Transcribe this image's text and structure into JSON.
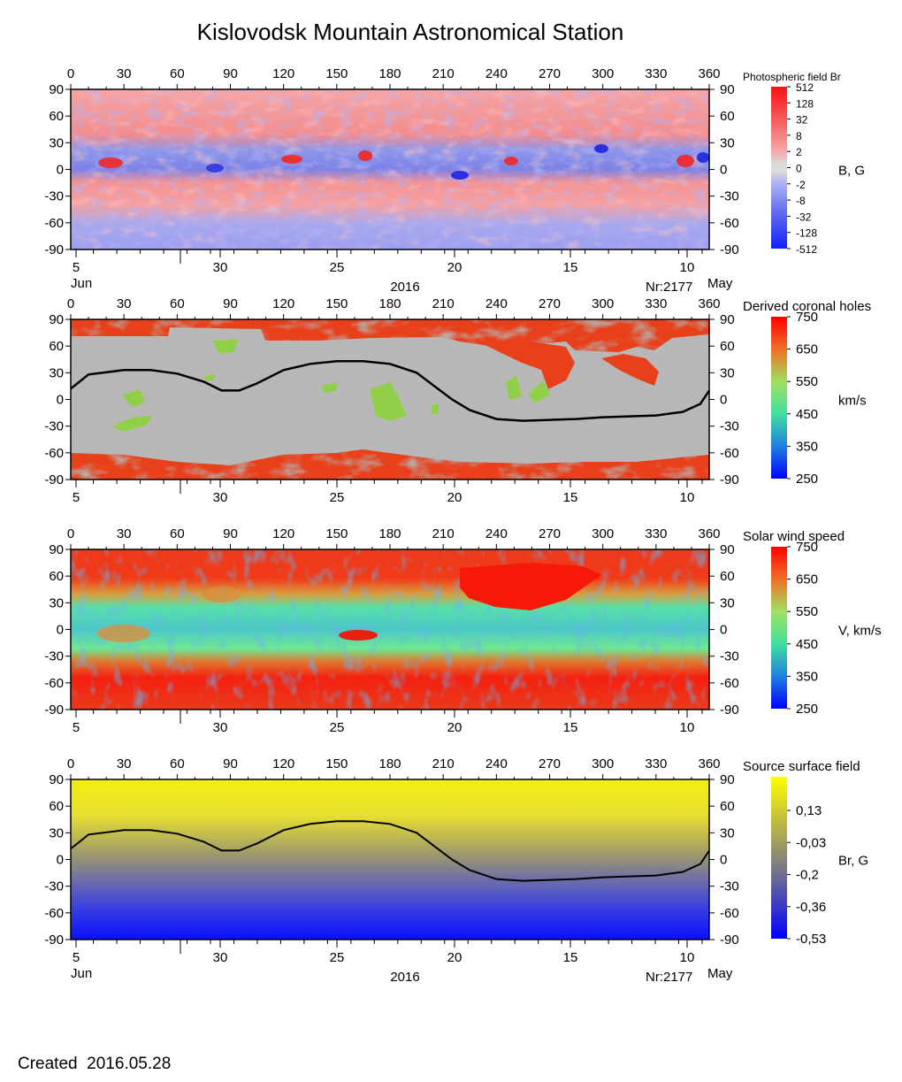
{
  "title": "Kislovodsk Mountain Astronomical Station",
  "created_label": "Created",
  "created_date": "2016.05.28",
  "chart_data": [
    {
      "type": "heatmap",
      "id": "photospheric",
      "cbar_title": "Photospheric field Br",
      "cbar_unit": "B, G",
      "cbar_ticks": [
        "512",
        "128",
        "32",
        "8",
        "2",
        "0",
        "-2",
        "-8",
        "-32",
        "-128",
        "-512"
      ],
      "colors": {
        "max": "#ff1010",
        "min": "#1020ff",
        "mid": "#dcdcdc"
      },
      "lon_ticks": [
        "0",
        "30",
        "60",
        "90",
        "120",
        "150",
        "180",
        "210",
        "240",
        "270",
        "300",
        "330",
        "360"
      ],
      "lat_ticks": [
        "90",
        "60",
        "30",
        "0",
        "-30",
        "-60",
        "-90"
      ],
      "xlim": [
        0,
        360
      ],
      "ylim": [
        -90,
        90
      ],
      "date_ticks": [
        "5",
        "30",
        "25",
        "20",
        "15",
        "10"
      ],
      "month_left": "Jun",
      "month_right": "May",
      "year": "2016",
      "rotation": "Nr:2177"
    },
    {
      "type": "heatmap",
      "id": "coronal_holes",
      "cbar_title": "Derived coronal holes",
      "cbar_unit": "km/s",
      "cbar_ticks": [
        "750",
        "650",
        "550",
        "450",
        "350",
        "250"
      ],
      "lon_ticks": [
        "0",
        "30",
        "60",
        "90",
        "120",
        "150",
        "180",
        "210",
        "240",
        "270",
        "300",
        "330",
        "360"
      ],
      "lat_ticks": [
        "90",
        "60",
        "30",
        "0",
        "-30",
        "-60",
        "-90"
      ],
      "xlim": [
        0,
        360
      ],
      "ylim": [
        -90,
        90
      ],
      "date_ticks": [
        "5",
        "30",
        "25",
        "20",
        "15",
        "10"
      ],
      "neutral_line": true
    },
    {
      "type": "heatmap",
      "id": "wind_speed",
      "cbar_title": "Solar wind speed",
      "cbar_unit": "V, km/s",
      "cbar_ticks": [
        "750",
        "650",
        "550",
        "450",
        "350",
        "250"
      ],
      "lon_ticks": [
        "0",
        "30",
        "60",
        "90",
        "120",
        "150",
        "180",
        "210",
        "240",
        "270",
        "300",
        "330",
        "360"
      ],
      "lat_ticks": [
        "90",
        "60",
        "30",
        "0",
        "-30",
        "-60",
        "-90"
      ],
      "xlim": [
        0,
        360
      ],
      "ylim": [
        -90,
        90
      ],
      "date_ticks": [
        "5",
        "30",
        "25",
        "20",
        "15",
        "10"
      ]
    },
    {
      "type": "heatmap",
      "id": "source_surface",
      "cbar_title": "Source surface field",
      "cbar_unit": "Br, G",
      "cbar_ticks": [
        "0,13",
        "-0,03",
        "-0,2",
        "-0,36",
        "-0,53"
      ],
      "lon_ticks": [
        "0",
        "30",
        "60",
        "90",
        "120",
        "150",
        "180",
        "210",
        "240",
        "270",
        "300",
        "330",
        "360"
      ],
      "lat_ticks": [
        "90",
        "60",
        "30",
        "0",
        "-30",
        "-60",
        "-90"
      ],
      "xlim": [
        0,
        360
      ],
      "ylim": [
        -90,
        90
      ],
      "date_ticks": [
        "5",
        "30",
        "25",
        "20",
        "15",
        "10"
      ],
      "month_left": "Jun",
      "month_right": "May",
      "year": "2016",
      "rotation": "Nr:2177",
      "neutral_line": true
    }
  ],
  "neutral_line": {
    "lon": [
      0,
      10,
      30,
      45,
      60,
      75,
      85,
      95,
      105,
      120,
      135,
      150,
      165,
      180,
      195,
      205,
      215,
      225,
      240,
      255,
      270,
      285,
      300,
      315,
      330,
      345,
      355,
      360
    ],
    "lat": [
      12,
      28,
      33,
      33,
      29,
      20,
      10,
      10,
      18,
      33,
      40,
      43,
      43,
      40,
      30,
      15,
      0,
      -12,
      -22,
      -24,
      -23,
      -22,
      -20,
      -19,
      -18,
      -14,
      -5,
      10
    ]
  }
}
